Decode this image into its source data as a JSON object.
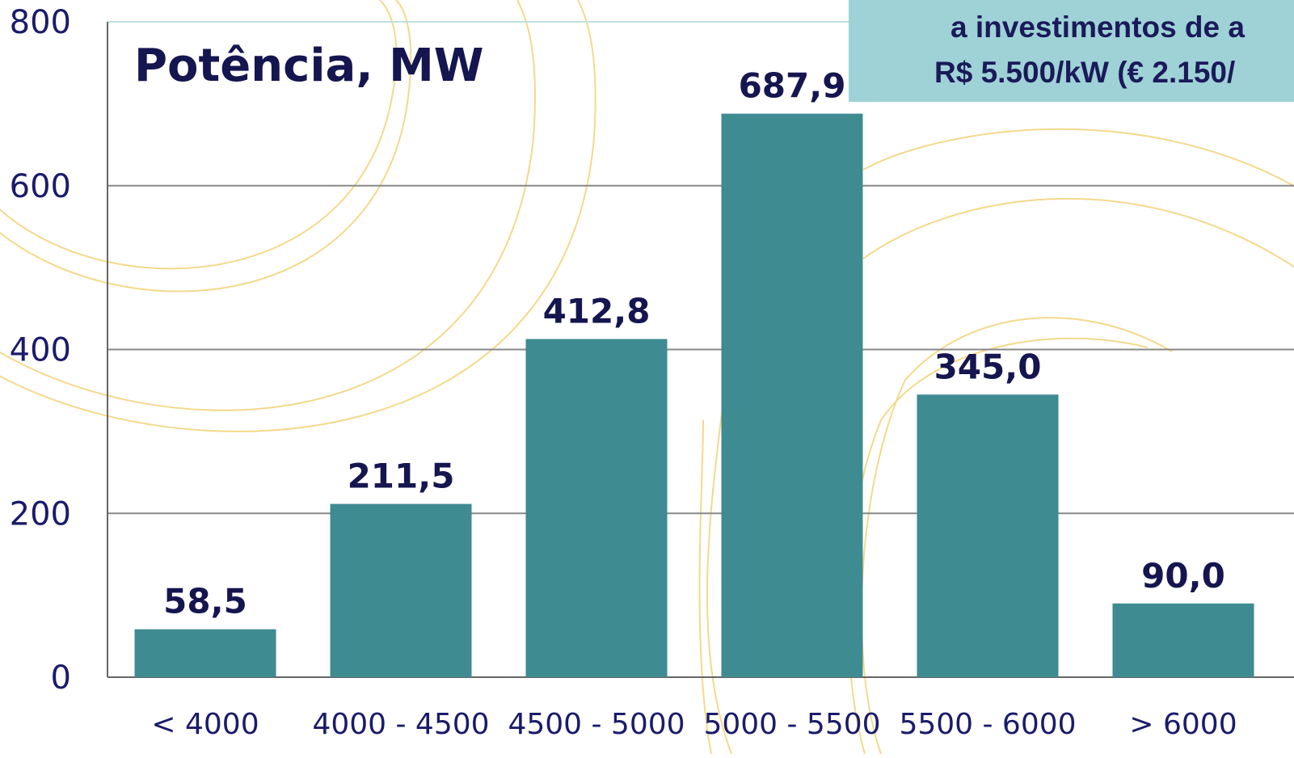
{
  "chart_data": {
    "type": "bar",
    "title": "Potência, MW",
    "categories": [
      "< 4000",
      "4000 - 4500",
      "4500 - 5000",
      "5000 - 5500",
      "5500 - 6000",
      "> 6000"
    ],
    "values": [
      58.5,
      211.5,
      412.8,
      687.9,
      345.0,
      90.0
    ],
    "value_labels": [
      "58,5",
      "211,5",
      "412,8",
      "687,9",
      "345,0",
      "90,0"
    ],
    "ylim": [
      0,
      800
    ],
    "yticks": [
      0,
      200,
      400,
      600,
      800
    ],
    "ytick_labels": [
      "0",
      "200",
      "400",
      "600",
      "800"
    ],
    "grid": true,
    "bar_color": "#3e8b91",
    "annotation": {
      "lines": [
        "a investimentos de a",
        "R$ 5.500/kW (€ 2.150/"
      ],
      "background": "#9fd2d6"
    }
  },
  "colors": {
    "text": "#151550",
    "axis": "#666666",
    "grid": "#888888",
    "decor": "#f4d98c"
  }
}
